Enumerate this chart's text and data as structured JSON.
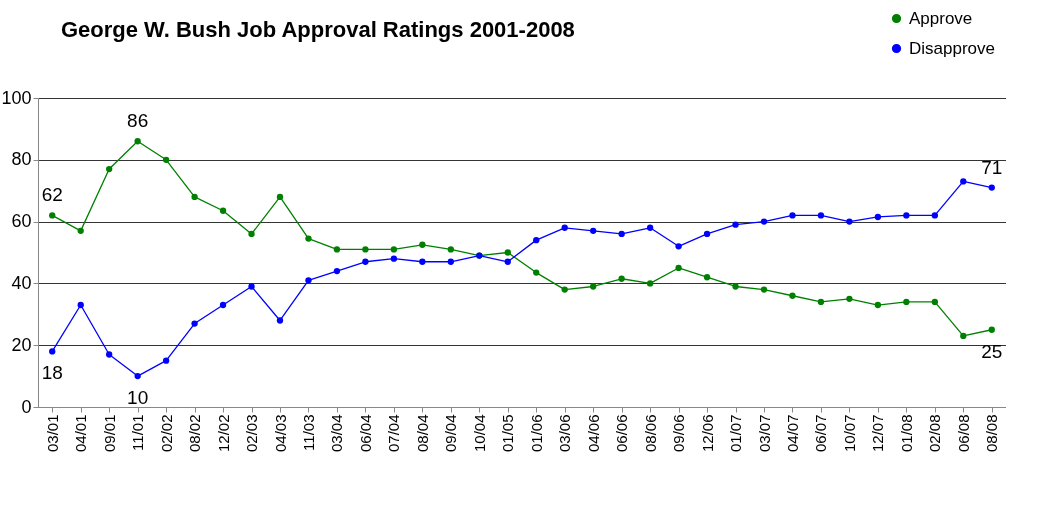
{
  "chart_data": {
    "type": "line",
    "title": "George W. Bush Job Approval Ratings 2001-2008",
    "categories": [
      "03/01",
      "04/01",
      "09/01",
      "11/01",
      "02/02",
      "08/02",
      "12/02",
      "02/03",
      "04/03",
      "11/03",
      "03/04",
      "06/04",
      "07/04",
      "08/04",
      "09/04",
      "10/04",
      "01/05",
      "01/06",
      "03/06",
      "04/06",
      "06/06",
      "08/06",
      "09/06",
      "12/06",
      "01/07",
      "03/07",
      "04/07",
      "06/07",
      "10/07",
      "12/07",
      "01/08",
      "02/08",
      "06/08",
      "08/08"
    ],
    "series": [
      {
        "name": "Approve",
        "color": "#008000",
        "values": [
          62,
          57,
          77,
          86,
          80,
          68,
          63.5,
          56,
          68,
          54.5,
          51,
          51,
          51,
          52.5,
          51,
          49,
          50,
          43.5,
          38,
          39,
          41.5,
          40,
          45,
          42,
          39,
          38,
          36,
          34,
          35,
          33,
          34,
          34,
          23,
          25
        ],
        "value_labels": [
          "62",
          null,
          null,
          "86",
          null,
          null,
          null,
          null,
          null,
          null,
          null,
          null,
          null,
          null,
          null,
          null,
          null,
          null,
          null,
          null,
          null,
          null,
          null,
          null,
          null,
          null,
          null,
          null,
          null,
          null,
          null,
          null,
          null,
          "25"
        ]
      },
      {
        "name": "Disapprove",
        "color": "#0000ff",
        "values": [
          18,
          33,
          17,
          10,
          15,
          27,
          33,
          39,
          28,
          41,
          44,
          47,
          48,
          47,
          47,
          49,
          47,
          54,
          58,
          57,
          56,
          58,
          52,
          56,
          59,
          60,
          62,
          62,
          60,
          61.5,
          62,
          62,
          73,
          71
        ],
        "value_labels": [
          "18",
          null,
          null,
          "10",
          null,
          null,
          null,
          null,
          null,
          null,
          null,
          null,
          null,
          null,
          null,
          null,
          null,
          null,
          null,
          null,
          null,
          null,
          null,
          null,
          null,
          null,
          null,
          null,
          null,
          null,
          null,
          null,
          null,
          "71"
        ]
      }
    ],
    "ylim": [
      0,
      100
    ],
    "yticks": [
      0,
      20,
      40,
      60,
      80,
      100
    ],
    "grid": "y",
    "legend": "top right",
    "marker": "circle",
    "line_style": "solid"
  }
}
